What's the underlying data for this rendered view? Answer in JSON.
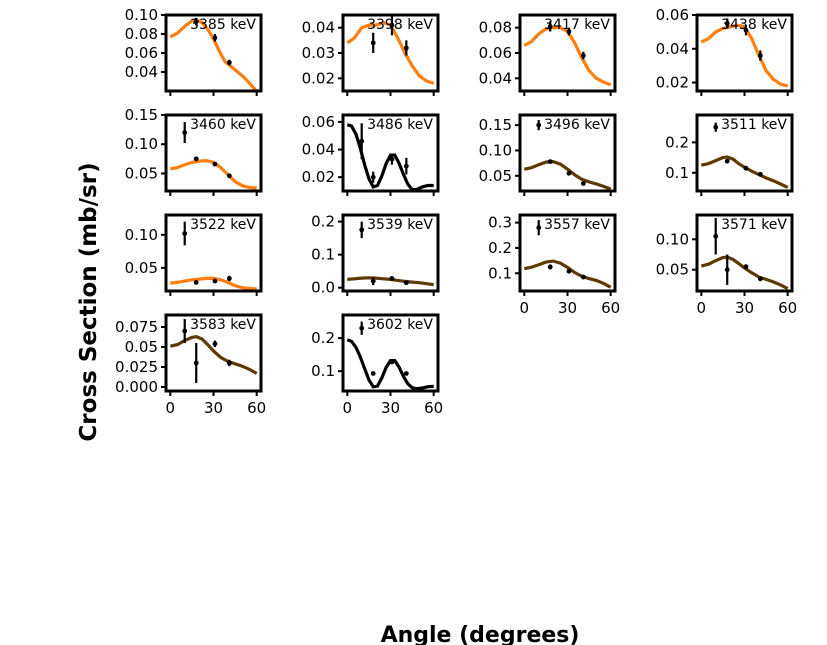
{
  "figure": {
    "xlabel": "Angle (degrees)",
    "ylabel": "Cross Section (mb/sr)"
  },
  "colors": {
    "orange": "#ff7f0e",
    "brown": "#5c3a00",
    "black": "#000000"
  },
  "chart_data": [
    {
      "type": "scatter",
      "title": "3385 keV",
      "color": "orange",
      "ylim": [
        0.02,
        0.1
      ],
      "yticks": [
        0.04,
        0.06,
        0.08,
        0.1
      ],
      "show_xticklabels": false,
      "points": [
        {
          "x": 18,
          "y": 0.093,
          "err": 0.004
        },
        {
          "x": 31,
          "y": 0.076,
          "err": 0.004
        },
        {
          "x": 41,
          "y": 0.05,
          "err": 0.003
        }
      ],
      "curve": [
        [
          0,
          0.077
        ],
        [
          5,
          0.081
        ],
        [
          10,
          0.088
        ],
        [
          15,
          0.094
        ],
        [
          18,
          0.095
        ],
        [
          22,
          0.092
        ],
        [
          26,
          0.085
        ],
        [
          30,
          0.075
        ],
        [
          34,
          0.062
        ],
        [
          38,
          0.051
        ],
        [
          42,
          0.046
        ],
        [
          46,
          0.041
        ],
        [
          50,
          0.036
        ],
        [
          54,
          0.03
        ],
        [
          58,
          0.023
        ],
        [
          60,
          0.02
        ]
      ]
    },
    {
      "type": "scatter",
      "title": "3398 keV",
      "color": "orange",
      "ylim": [
        0.015,
        0.045
      ],
      "yticks": [
        0.02,
        0.03,
        0.04
      ],
      "show_xticklabels": false,
      "points": [
        {
          "x": 18,
          "y": 0.034,
          "err": 0.004
        },
        {
          "x": 31,
          "y": 0.041,
          "err": 0.004
        },
        {
          "x": 41,
          "y": 0.032,
          "err": 0.003
        }
      ],
      "curve": [
        [
          0,
          0.034
        ],
        [
          5,
          0.036
        ],
        [
          10,
          0.04
        ],
        [
          15,
          0.041
        ],
        [
          20,
          0.041
        ],
        [
          25,
          0.042
        ],
        [
          30,
          0.041
        ],
        [
          35,
          0.036
        ],
        [
          40,
          0.03
        ],
        [
          45,
          0.025
        ],
        [
          50,
          0.021
        ],
        [
          55,
          0.019
        ],
        [
          60,
          0.018
        ]
      ]
    },
    {
      "type": "scatter",
      "title": "3417 keV",
      "color": "orange",
      "ylim": [
        0.03,
        0.09
      ],
      "yticks": [
        0.04,
        0.06,
        0.08
      ],
      "show_xticklabels": false,
      "points": [
        {
          "x": 18,
          "y": 0.081,
          "err": 0.004
        },
        {
          "x": 31,
          "y": 0.077,
          "err": 0.003
        },
        {
          "x": 41,
          "y": 0.058,
          "err": 0.003
        }
      ],
      "curve": [
        [
          0,
          0.066
        ],
        [
          5,
          0.069
        ],
        [
          10,
          0.075
        ],
        [
          15,
          0.079
        ],
        [
          20,
          0.08
        ],
        [
          25,
          0.08
        ],
        [
          30,
          0.077
        ],
        [
          35,
          0.068
        ],
        [
          40,
          0.056
        ],
        [
          45,
          0.046
        ],
        [
          50,
          0.04
        ],
        [
          55,
          0.037
        ],
        [
          60,
          0.035
        ]
      ]
    },
    {
      "type": "scatter",
      "title": "3438 keV",
      "color": "orange",
      "ylim": [
        0.015,
        0.06
      ],
      "yticks": [
        0.02,
        0.04,
        0.06
      ],
      "show_xticklabels": false,
      "points": [
        {
          "x": 18,
          "y": 0.055,
          "err": 0.003
        },
        {
          "x": 31,
          "y": 0.051,
          "err": 0.003
        },
        {
          "x": 41,
          "y": 0.036,
          "err": 0.003
        }
      ],
      "curve": [
        [
          0,
          0.044
        ],
        [
          5,
          0.046
        ],
        [
          10,
          0.05
        ],
        [
          15,
          0.052
        ],
        [
          20,
          0.053
        ],
        [
          25,
          0.054
        ],
        [
          30,
          0.053
        ],
        [
          35,
          0.046
        ],
        [
          40,
          0.036
        ],
        [
          45,
          0.027
        ],
        [
          50,
          0.022
        ],
        [
          55,
          0.019
        ],
        [
          60,
          0.018
        ]
      ]
    },
    {
      "type": "scatter",
      "title": "3460 keV",
      "color": "orange",
      "ylim": [
        0.02,
        0.15
      ],
      "yticks": [
        0.05,
        0.1,
        0.15
      ],
      "show_xticklabels": false,
      "points": [
        {
          "x": 10,
          "y": 0.12,
          "err": 0.018
        },
        {
          "x": 18,
          "y": 0.075,
          "err": 0.004
        },
        {
          "x": 31,
          "y": 0.066,
          "err": 0.003
        },
        {
          "x": 41,
          "y": 0.046,
          "err": 0.003
        }
      ],
      "curve": [
        [
          0,
          0.058
        ],
        [
          5,
          0.06
        ],
        [
          10,
          0.065
        ],
        [
          15,
          0.069
        ],
        [
          20,
          0.071
        ],
        [
          25,
          0.072
        ],
        [
          30,
          0.069
        ],
        [
          35,
          0.06
        ],
        [
          40,
          0.048
        ],
        [
          45,
          0.036
        ],
        [
          50,
          0.029
        ],
        [
          55,
          0.026
        ],
        [
          60,
          0.025
        ]
      ]
    },
    {
      "type": "scatter",
      "title": "3486 keV",
      "color": "black",
      "ylim": [
        0.01,
        0.065
      ],
      "yticks": [
        0.02,
        0.04,
        0.06
      ],
      "show_xticklabels": false,
      "points": [
        {
          "x": 10,
          "y": 0.046,
          "err": 0.013
        },
        {
          "x": 18,
          "y": 0.02,
          "err": 0.004
        },
        {
          "x": 31,
          "y": 0.033,
          "err": 0.004
        },
        {
          "x": 41,
          "y": 0.028,
          "err": 0.006
        }
      ],
      "curve": [
        [
          0,
          0.058
        ],
        [
          3,
          0.057
        ],
        [
          6,
          0.051
        ],
        [
          9,
          0.041
        ],
        [
          12,
          0.029
        ],
        [
          15,
          0.019
        ],
        [
          18,
          0.013
        ],
        [
          21,
          0.014
        ],
        [
          24,
          0.021
        ],
        [
          27,
          0.03
        ],
        [
          30,
          0.036
        ],
        [
          33,
          0.036
        ],
        [
          36,
          0.03
        ],
        [
          39,
          0.022
        ],
        [
          42,
          0.015
        ],
        [
          45,
          0.011
        ],
        [
          48,
          0.011
        ],
        [
          52,
          0.013
        ],
        [
          56,
          0.014
        ],
        [
          60,
          0.014
        ]
      ]
    },
    {
      "type": "scatter",
      "title": "3496 keV",
      "color": "brown",
      "ylim": [
        0.02,
        0.17
      ],
      "yticks": [
        0.05,
        0.1,
        0.15
      ],
      "show_xticklabels": false,
      "points": [
        {
          "x": 10,
          "y": 0.15,
          "err": 0.01
        },
        {
          "x": 18,
          "y": 0.078,
          "err": 0.003
        },
        {
          "x": 31,
          "y": 0.055,
          "err": 0.003
        },
        {
          "x": 41,
          "y": 0.035,
          "err": 0.003
        }
      ],
      "curve": [
        [
          0,
          0.063
        ],
        [
          5,
          0.066
        ],
        [
          10,
          0.072
        ],
        [
          15,
          0.077
        ],
        [
          20,
          0.078
        ],
        [
          25,
          0.073
        ],
        [
          30,
          0.063
        ],
        [
          35,
          0.052
        ],
        [
          40,
          0.043
        ],
        [
          45,
          0.038
        ],
        [
          50,
          0.034
        ],
        [
          55,
          0.029
        ],
        [
          60,
          0.024
        ]
      ]
    },
    {
      "type": "scatter",
      "title": "3511 keV",
      "color": "brown",
      "ylim": [
        0.04,
        0.29
      ],
      "yticks": [
        0.1,
        0.2
      ],
      "show_xticklabels": false,
      "points": [
        {
          "x": 10,
          "y": 0.25,
          "err": 0.015
        },
        {
          "x": 18,
          "y": 0.138,
          "err": 0.005
        },
        {
          "x": 31,
          "y": 0.115,
          "err": 0.004
        },
        {
          "x": 41,
          "y": 0.095,
          "err": 0.003
        }
      ],
      "curve": [
        [
          0,
          0.125
        ],
        [
          5,
          0.13
        ],
        [
          10,
          0.14
        ],
        [
          15,
          0.15
        ],
        [
          18,
          0.152
        ],
        [
          22,
          0.145
        ],
        [
          26,
          0.13
        ],
        [
          30,
          0.118
        ],
        [
          35,
          0.105
        ],
        [
          40,
          0.094
        ],
        [
          45,
          0.083
        ],
        [
          50,
          0.074
        ],
        [
          55,
          0.063
        ],
        [
          60,
          0.052
        ]
      ]
    },
    {
      "type": "scatter",
      "title": "3522 keV",
      "color": "orange",
      "ylim": [
        0.015,
        0.13
      ],
      "yticks": [
        0.05,
        0.1
      ],
      "show_xticklabels": false,
      "points": [
        {
          "x": 10,
          "y": 0.102,
          "err": 0.018
        },
        {
          "x": 18,
          "y": 0.028,
          "err": 0.002
        },
        {
          "x": 31,
          "y": 0.03,
          "err": 0.003
        },
        {
          "x": 41,
          "y": 0.034,
          "err": 0.004
        }
      ],
      "curve": [
        [
          0,
          0.027
        ],
        [
          5,
          0.028
        ],
        [
          10,
          0.03
        ],
        [
          15,
          0.032
        ],
        [
          20,
          0.033
        ],
        [
          25,
          0.034
        ],
        [
          30,
          0.034
        ],
        [
          35,
          0.032
        ],
        [
          40,
          0.028
        ],
        [
          45,
          0.023
        ],
        [
          50,
          0.02
        ],
        [
          55,
          0.019
        ],
        [
          60,
          0.018
        ]
      ]
    },
    {
      "type": "scatter",
      "title": "3539 keV",
      "color": "brown",
      "ylim": [
        -0.01,
        0.22
      ],
      "yticks": [
        0.0,
        0.1,
        0.2
      ],
      "show_xticklabels": false,
      "points": [
        {
          "x": 10,
          "y": 0.175,
          "err": 0.025
        },
        {
          "x": 18,
          "y": 0.02,
          "err": 0.012
        },
        {
          "x": 31,
          "y": 0.028,
          "err": 0.004
        },
        {
          "x": 41,
          "y": 0.015,
          "err": 0.003
        }
      ],
      "curve": [
        [
          0,
          0.025
        ],
        [
          5,
          0.027
        ],
        [
          10,
          0.029
        ],
        [
          15,
          0.03
        ],
        [
          20,
          0.029
        ],
        [
          25,
          0.027
        ],
        [
          30,
          0.025
        ],
        [
          35,
          0.022
        ],
        [
          40,
          0.019
        ],
        [
          45,
          0.017
        ],
        [
          50,
          0.015
        ],
        [
          55,
          0.012
        ],
        [
          60,
          0.009
        ]
      ]
    },
    {
      "type": "scatter",
      "title": "3557 keV",
      "color": "brown",
      "ylim": [
        0.03,
        0.33
      ],
      "yticks": [
        0.1,
        0.2,
        0.3
      ],
      "show_xticklabels": true,
      "xticks": [
        0,
        30,
        60
      ],
      "points": [
        {
          "x": 10,
          "y": 0.28,
          "err": 0.03
        },
        {
          "x": 18,
          "y": 0.125,
          "err": 0.01
        },
        {
          "x": 31,
          "y": 0.108,
          "err": 0.005
        },
        {
          "x": 41,
          "y": 0.085,
          "err": 0.004
        }
      ],
      "curve": [
        [
          0,
          0.118
        ],
        [
          5,
          0.124
        ],
        [
          10,
          0.134
        ],
        [
          15,
          0.144
        ],
        [
          20,
          0.148
        ],
        [
          25,
          0.14
        ],
        [
          30,
          0.123
        ],
        [
          35,
          0.103
        ],
        [
          40,
          0.088
        ],
        [
          45,
          0.079
        ],
        [
          50,
          0.072
        ],
        [
          55,
          0.06
        ],
        [
          60,
          0.045
        ]
      ]
    },
    {
      "type": "scatter",
      "title": "3571 keV",
      "color": "brown",
      "ylim": [
        0.015,
        0.14
      ],
      "yticks": [
        0.05,
        0.1
      ],
      "show_xticklabels": true,
      "xticks": [
        0,
        30,
        60
      ],
      "points": [
        {
          "x": 10,
          "y": 0.105,
          "err": 0.03
        },
        {
          "x": 18,
          "y": 0.05,
          "err": 0.025
        },
        {
          "x": 31,
          "y": 0.055,
          "err": 0.003
        },
        {
          "x": 41,
          "y": 0.035,
          "err": 0.003
        }
      ],
      "curve": [
        [
          0,
          0.056
        ],
        [
          5,
          0.059
        ],
        [
          10,
          0.065
        ],
        [
          15,
          0.07
        ],
        [
          18,
          0.071
        ],
        [
          22,
          0.067
        ],
        [
          26,
          0.06
        ],
        [
          30,
          0.053
        ],
        [
          35,
          0.045
        ],
        [
          40,
          0.038
        ],
        [
          45,
          0.034
        ],
        [
          50,
          0.03
        ],
        [
          55,
          0.025
        ],
        [
          60,
          0.019
        ]
      ]
    },
    {
      "type": "scatter",
      "title": "3583 keV",
      "color": "brown",
      "ylim": [
        -0.005,
        0.09
      ],
      "yticks": [
        0.0,
        0.025,
        0.05,
        0.075
      ],
      "show_xticklabels": true,
      "xticks": [
        0,
        30,
        60
      ],
      "points": [
        {
          "x": 10,
          "y": 0.07,
          "err": 0.015
        },
        {
          "x": 18,
          "y": 0.03,
          "err": 0.025
        },
        {
          "x": 31,
          "y": 0.054,
          "err": 0.004
        },
        {
          "x": 41,
          "y": 0.03,
          "err": 0.004
        }
      ],
      "curve": [
        [
          0,
          0.051
        ],
        [
          5,
          0.053
        ],
        [
          10,
          0.058
        ],
        [
          15,
          0.062
        ],
        [
          18,
          0.063
        ],
        [
          22,
          0.06
        ],
        [
          26,
          0.053
        ],
        [
          30,
          0.045
        ],
        [
          35,
          0.037
        ],
        [
          40,
          0.032
        ],
        [
          45,
          0.029
        ],
        [
          50,
          0.026
        ],
        [
          55,
          0.022
        ],
        [
          60,
          0.017
        ]
      ]
    },
    {
      "type": "scatter",
      "title": "3602 keV",
      "color": "black",
      "ylim": [
        0.04,
        0.27
      ],
      "yticks": [
        0.1,
        0.2
      ],
      "show_xticklabels": true,
      "xticks": [
        0,
        30,
        60
      ],
      "points": [
        {
          "x": 10,
          "y": 0.23,
          "err": 0.02
        },
        {
          "x": 18,
          "y": 0.093,
          "err": 0.004
        },
        {
          "x": 31,
          "y": 0.128,
          "err": 0.005
        },
        {
          "x": 41,
          "y": 0.093,
          "err": 0.004
        }
      ],
      "curve": [
        [
          0,
          0.195
        ],
        [
          3,
          0.19
        ],
        [
          6,
          0.172
        ],
        [
          9,
          0.143
        ],
        [
          12,
          0.108
        ],
        [
          15,
          0.074
        ],
        [
          18,
          0.053
        ],
        [
          21,
          0.055
        ],
        [
          24,
          0.08
        ],
        [
          27,
          0.112
        ],
        [
          30,
          0.132
        ],
        [
          33,
          0.132
        ],
        [
          36,
          0.112
        ],
        [
          39,
          0.084
        ],
        [
          42,
          0.062
        ],
        [
          45,
          0.05
        ],
        [
          48,
          0.047
        ],
        [
          52,
          0.049
        ],
        [
          56,
          0.053
        ],
        [
          60,
          0.054
        ]
      ]
    }
  ]
}
